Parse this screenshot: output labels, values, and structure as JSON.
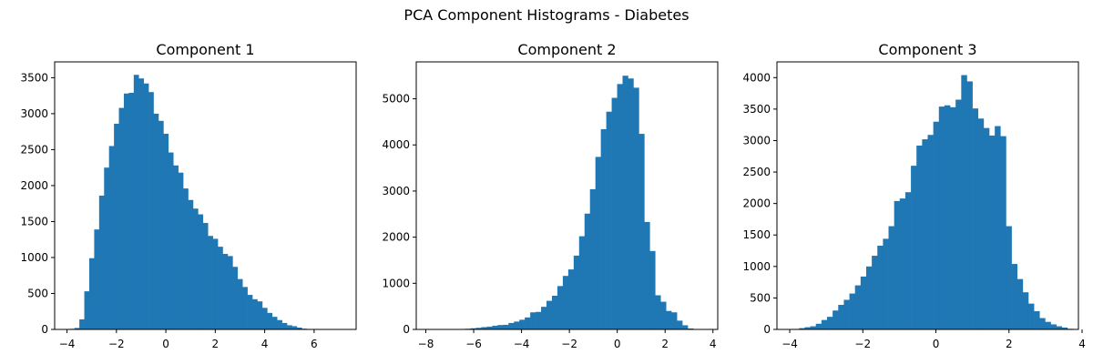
{
  "suptitle": "PCA Component Histograms - Diabetes",
  "bar_color": "#1f77b4",
  "chart_data": [
    {
      "type": "bar",
      "title": "Component 1",
      "xlabel": "",
      "ylabel": "",
      "xlim": [
        -4.5,
        7.7
      ],
      "ylim": [
        0,
        3720
      ],
      "xticks": [
        -4,
        -2,
        0,
        2,
        4,
        6
      ],
      "yticks": [
        0,
        500,
        1000,
        1500,
        2000,
        2500,
        3000,
        3500
      ],
      "bin_start": -3.9,
      "bin_width": 0.2,
      "values": [
        8,
        20,
        140,
        530,
        990,
        1390,
        1860,
        2250,
        2550,
        2860,
        3080,
        3280,
        3290,
        3540,
        3490,
        3420,
        3300,
        3000,
        2900,
        2720,
        2460,
        2280,
        2180,
        1960,
        1800,
        1680,
        1600,
        1480,
        1300,
        1260,
        1150,
        1050,
        1020,
        870,
        700,
        590,
        480,
        420,
        390,
        300,
        230,
        175,
        130,
        90,
        58,
        45,
        25,
        10
      ]
    },
    {
      "type": "bar",
      "title": "Component 2",
      "xlabel": "",
      "ylabel": "",
      "xlim": [
        -8.4,
        4.2
      ],
      "ylim": [
        0,
        5800
      ],
      "xticks": [
        -8,
        -6,
        -4,
        -2,
        0,
        2,
        4
      ],
      "yticks": [
        0,
        1000,
        2000,
        3000,
        4000,
        5000
      ],
      "bin_start": -7.95,
      "bin_width": 0.227,
      "values": [
        2,
        3,
        4,
        5,
        5,
        6,
        10,
        15,
        25,
        35,
        50,
        60,
        80,
        95,
        100,
        140,
        170,
        210,
        260,
        370,
        380,
        490,
        620,
        730,
        940,
        1160,
        1300,
        1600,
        2020,
        2510,
        3040,
        3740,
        4340,
        4720,
        5020,
        5320,
        5500,
        5440,
        5240,
        4240,
        2330,
        1700,
        740,
        600,
        400,
        370,
        190,
        90,
        20,
        5
      ]
    },
    {
      "type": "bar",
      "title": "Component 3",
      "xlabel": "",
      "ylabel": "",
      "xlim": [
        -4.35,
        3.9
      ],
      "ylim": [
        0,
        4250
      ],
      "xticks": [
        -4,
        -2,
        0,
        2,
        4
      ],
      "yticks": [
        0,
        500,
        1000,
        1500,
        2000,
        2500,
        3000,
        3500,
        4000
      ],
      "bin_start": -4.05,
      "bin_width": 0.153,
      "values": [
        5,
        8,
        20,
        35,
        50,
        90,
        150,
        200,
        300,
        390,
        470,
        570,
        700,
        840,
        1000,
        1170,
        1330,
        1440,
        1640,
        2040,
        2080,
        2180,
        2600,
        2920,
        3020,
        3090,
        3300,
        3540,
        3560,
        3530,
        3650,
        4040,
        3940,
        3510,
        3350,
        3200,
        3080,
        3230,
        3070,
        1640,
        1040,
        800,
        590,
        410,
        290,
        180,
        120,
        80,
        50,
        30,
        10
      ]
    }
  ]
}
